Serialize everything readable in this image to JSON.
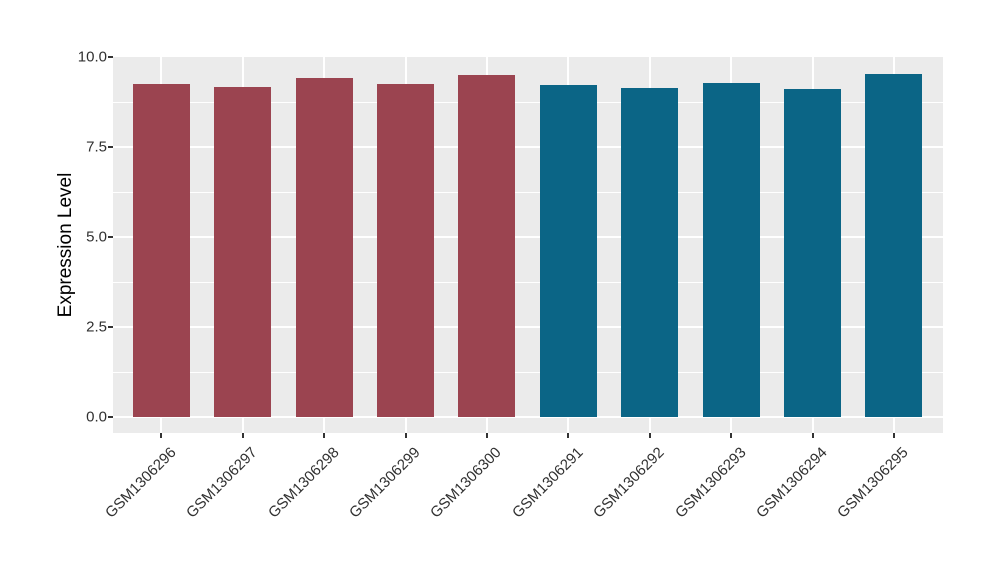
{
  "figure": {
    "background": "#FFFFFF",
    "panel_background": "#EBEBEB",
    "gridline_color": "#FFFFFF",
    "tick_mark_color": "#333333",
    "tick_label_color": "#303030",
    "axis_title_color": "#000000"
  },
  "chart_data": {
    "type": "bar",
    "title": "",
    "xlabel": "",
    "ylabel": "Expression Level",
    "categories": [
      "GSM1306296",
      "GSM1306297",
      "GSM1306298",
      "GSM1306299",
      "GSM1306300",
      "GSM1306291",
      "GSM1306292",
      "GSM1306293",
      "GSM1306294",
      "GSM1306295"
    ],
    "values": [
      9.25,
      9.17,
      9.42,
      9.26,
      9.51,
      9.22,
      9.15,
      9.29,
      9.11,
      9.52
    ],
    "bar_colors": [
      "#9B4450",
      "#9B4450",
      "#9B4450",
      "#9B4450",
      "#9B4450",
      "#0B6586",
      "#0B6586",
      "#0B6586",
      "#0B6586",
      "#0B6586"
    ],
    "group_colors": {
      "left_group": "#9B4450",
      "right_group": "#0B6586"
    },
    "y_tick_labels": [
      "0.0",
      "2.5",
      "5.0",
      "7.5",
      "10.0"
    ],
    "y_major_ticks": [
      0,
      2.5,
      5,
      7.5,
      10
    ],
    "y_minor_ticks": [
      1.25,
      3.75,
      6.25,
      8.75
    ],
    "ylim": [
      0,
      10
    ],
    "grid": "on",
    "legend": "none",
    "x_label_rotation": 45
  }
}
